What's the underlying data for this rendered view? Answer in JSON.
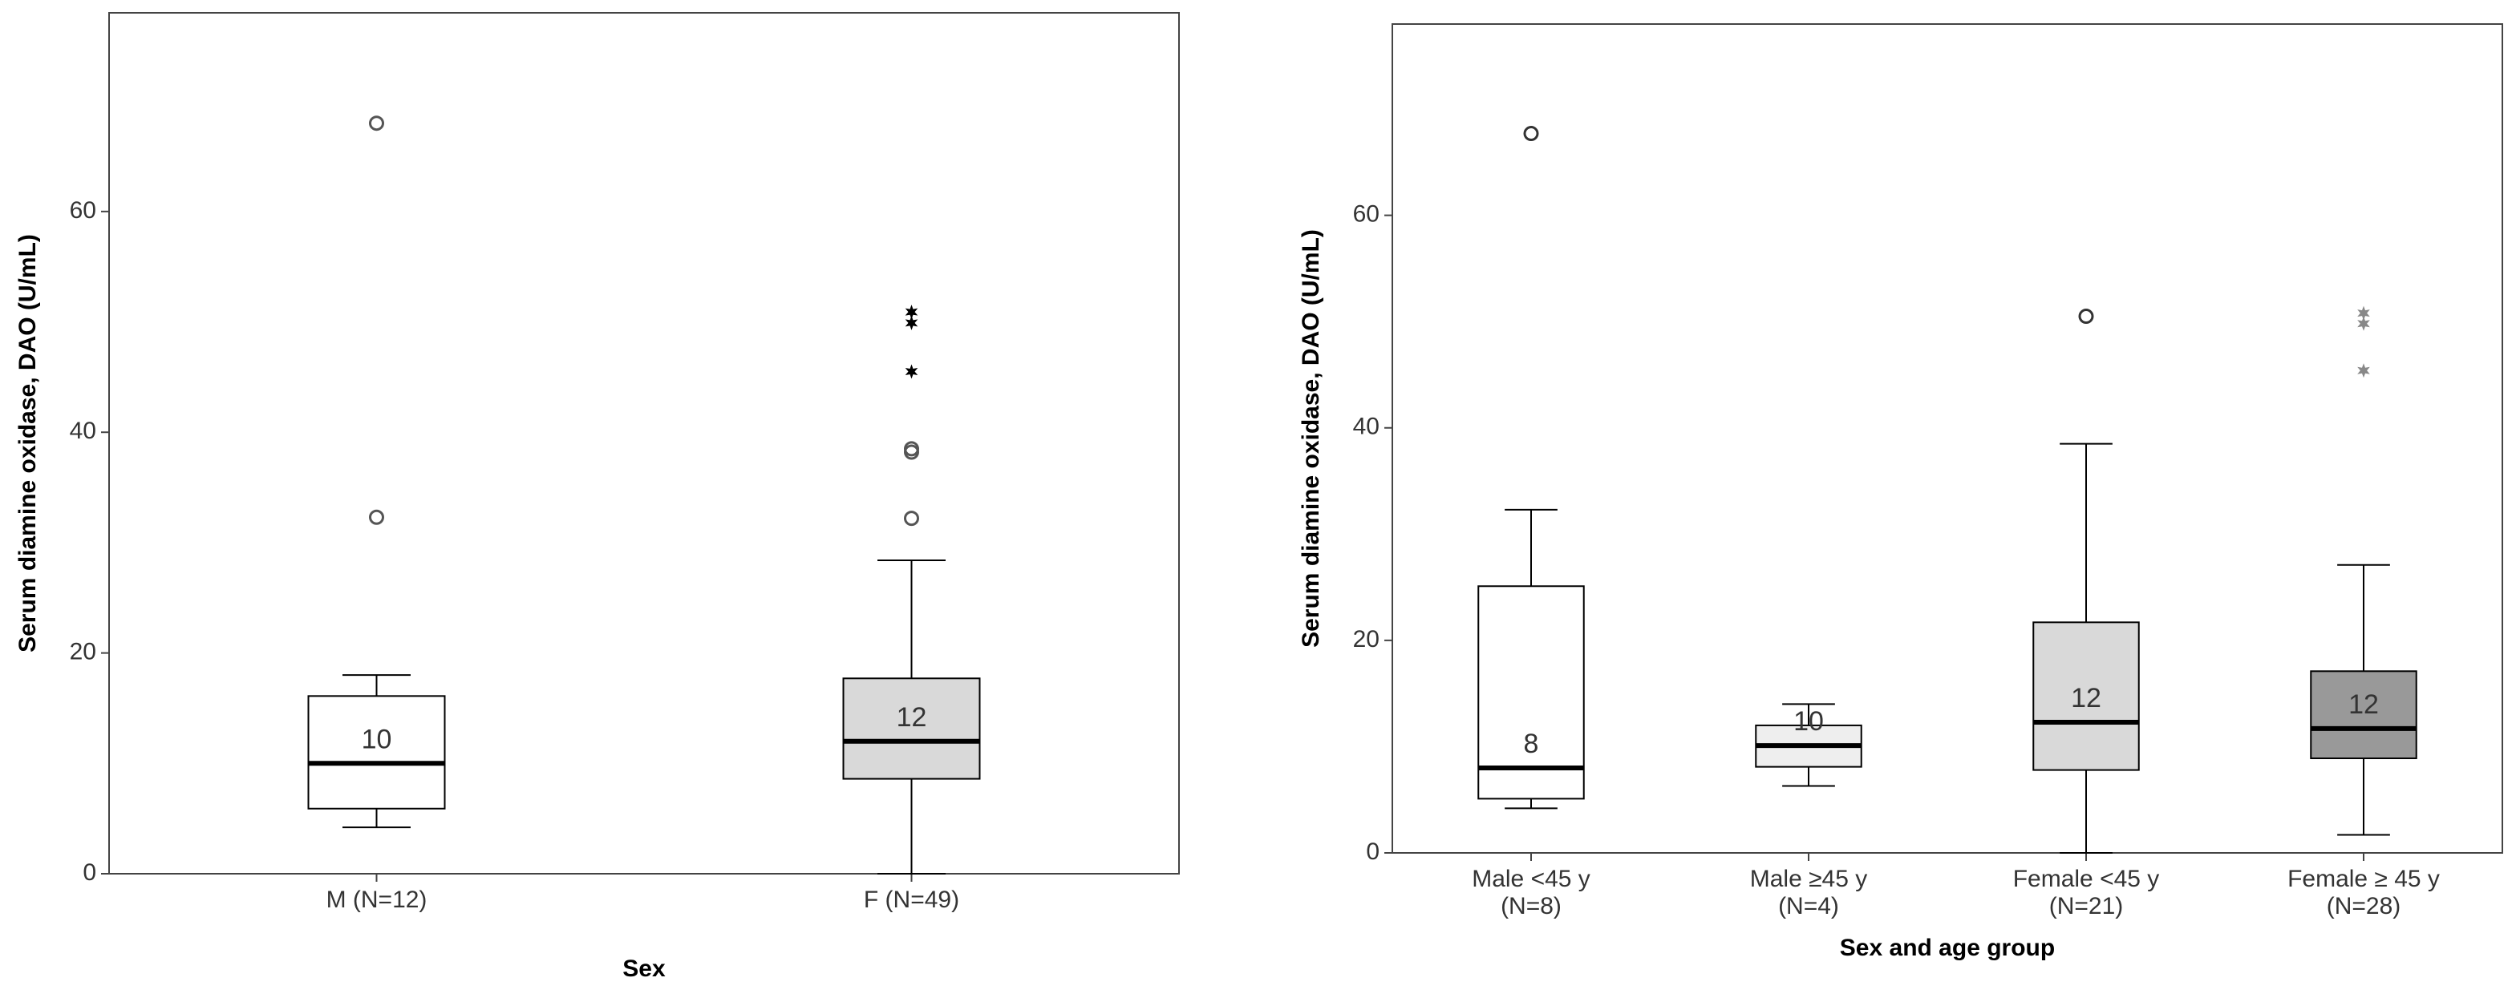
{
  "chart_data": [
    {
      "type": "box",
      "x_label": "Sex",
      "y_label": "Serum diamine oxidase, DAO (U/mL)",
      "categories": [
        "M (N=12)",
        "F (N=49)"
      ],
      "colors": [
        "#ffffff",
        "#d9d9d9"
      ],
      "boxes": [
        {
          "whislo": 4.2,
          "q1": 5.9,
          "med": 10,
          "q3": 16.1,
          "whishi": 18,
          "outliers": [
            32.3,
            68
          ],
          "extremes": []
        },
        {
          "whislo": 0,
          "q1": 8.6,
          "med": 12,
          "q3": 17.7,
          "whishi": 28.4,
          "outliers": [
            32.2,
            38.2,
            38.5
          ],
          "extremes": [
            45.5,
            49.9,
            50.9
          ]
        }
      ],
      "value_labels": [
        "10",
        "12"
      ],
      "ylim": [
        0,
        78
      ],
      "yticks": [
        0,
        20,
        40,
        60
      ]
    },
    {
      "type": "box",
      "x_label": "Sex and age group",
      "y_label": "Serum diamine oxidase, DAO (U/mL)",
      "categories": [
        "Male <45 y",
        "Male ≥45 y",
        "Female <45 y",
        "Female ≥ 45 y"
      ],
      "sublabels": [
        "(N=8)",
        "(N=4)",
        "(N=21)",
        "(N=28)"
      ],
      "colors": [
        "#ffffff",
        "#eeeeee",
        "#d9d9d9",
        "#999999"
      ],
      "boxes": [
        {
          "whislo": 4.2,
          "q1": 5.1,
          "med": 8,
          "q3": 25.1,
          "whishi": 32.3,
          "outliers": [
            67.7
          ],
          "extremes": []
        },
        {
          "whislo": 6.3,
          "q1": 8.1,
          "med": 10.1,
          "q3": 12,
          "whishi": 14,
          "outliers": [],
          "extremes": []
        },
        {
          "whislo": 0,
          "q1": 7.8,
          "med": 12.3,
          "q3": 21.7,
          "whishi": 38.5,
          "outliers": [
            50.5
          ],
          "extremes": []
        },
        {
          "whislo": 1.7,
          "q1": 8.9,
          "med": 11.7,
          "q3": 17.1,
          "whishi": 27.1,
          "outliers": [],
          "extremes": [
            45.4,
            49.8,
            50.8
          ]
        }
      ],
      "value_labels": [
        "8",
        "10",
        "12",
        "12"
      ],
      "ylim": [
        0,
        78
      ],
      "yticks": [
        0,
        20,
        40,
        60
      ]
    }
  ]
}
